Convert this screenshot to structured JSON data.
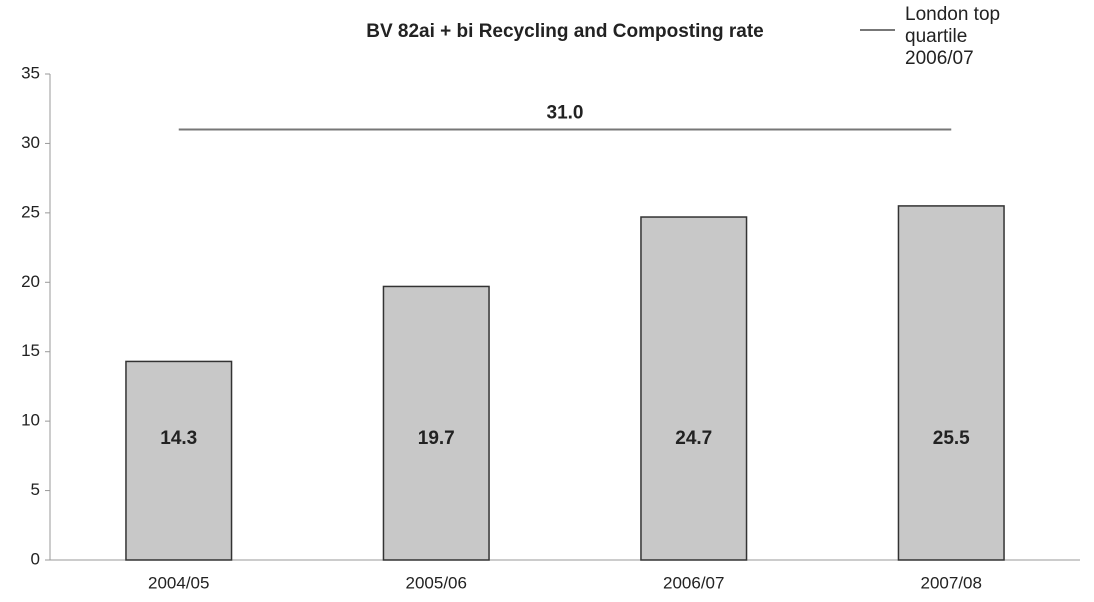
{
  "chart_data": {
    "type": "bar",
    "title": "BV 82ai + bi Recycling and Composting rate",
    "categories": [
      "2004/05",
      "2005/06",
      "2006/07",
      "2007/08"
    ],
    "values": [
      14.3,
      19.7,
      24.7,
      25.5
    ],
    "color": "#c8c8c8",
    "ylim": [
      0,
      35
    ],
    "yticks": [
      0,
      5,
      10,
      15,
      20,
      25,
      30,
      35
    ],
    "reference_line": {
      "name": "London top quartile 2006/07",
      "value": 31,
      "value_label": "31.0",
      "color": "#777777"
    }
  }
}
